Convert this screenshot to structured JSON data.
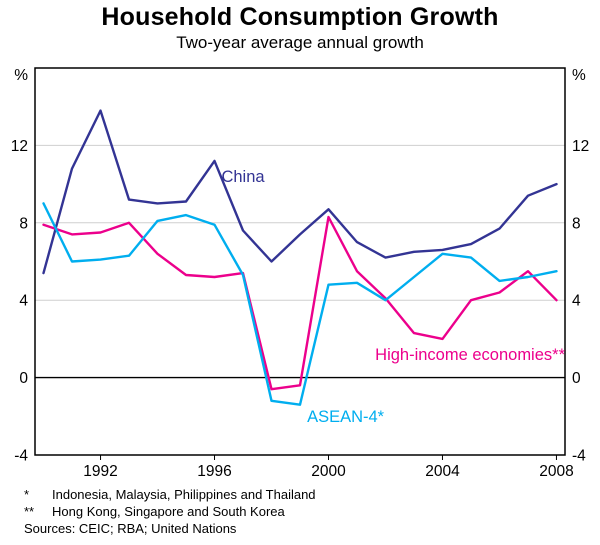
{
  "chart_data": {
    "type": "line",
    "title": "Household Consumption Growth",
    "subtitle": "Two-year average annual growth",
    "y_unit": "%",
    "ylim": [
      -4,
      16
    ],
    "y_ticks": [
      12,
      8,
      4,
      0,
      -4
    ],
    "xlim": [
      1989.7,
      2008.3
    ],
    "x_ticks": [
      1992,
      1996,
      2000,
      2004,
      2008
    ],
    "x": [
      1990,
      1991,
      1992,
      1993,
      1994,
      1995,
      1996,
      1997,
      1998,
      1999,
      2000,
      2001,
      2002,
      2003,
      2004,
      2005,
      2006,
      2007,
      2008
    ],
    "grid": "horizontal",
    "legend_position": "inline-labels",
    "series": [
      {
        "name": "China",
        "color": "#333494",
        "values": [
          5.4,
          10.8,
          13.8,
          9.2,
          9.0,
          9.1,
          11.2,
          7.6,
          6.0,
          7.4,
          8.7,
          7.0,
          6.2,
          6.5,
          6.6,
          6.9,
          7.7,
          9.4,
          10.0
        ],
        "label": {
          "x": 1997.0,
          "y": 10.4,
          "anchor": "middle"
        }
      },
      {
        "name": "High-income economies**",
        "color": "#ec008c",
        "values": [
          7.9,
          7.4,
          7.5,
          8.0,
          6.4,
          5.3,
          5.2,
          5.4,
          -0.6,
          -0.4,
          8.3,
          5.5,
          4.1,
          2.3,
          2.0,
          4.0,
          4.4,
          5.5,
          4.0
        ],
        "label": {
          "x": 2008.3,
          "y": 1.2,
          "anchor": "end"
        }
      },
      {
        "name": "ASEAN-4*",
        "color": "#00aeef",
        "values": [
          9.0,
          6.0,
          6.1,
          6.3,
          8.1,
          8.4,
          7.9,
          5.3,
          -1.2,
          -1.4,
          4.8,
          4.9,
          4.0,
          5.2,
          6.4,
          6.2,
          5.0,
          5.2,
          5.5
        ],
        "label": {
          "x": 2000.6,
          "y": -2.0,
          "anchor": "middle"
        }
      }
    ]
  },
  "footnotes": [
    {
      "marker": "*",
      "text": "Indonesia, Malaysia, Philippines and Thailand"
    },
    {
      "marker": "**",
      "text": "Hong Kong, Singapore and South Korea"
    }
  ],
  "sources": "Sources: CEIC; RBA; United Nations",
  "colors": {
    "frame": "#000000",
    "gridline": "#cfcfcf",
    "zero_line": "#000000",
    "background": "#ffffff"
  }
}
